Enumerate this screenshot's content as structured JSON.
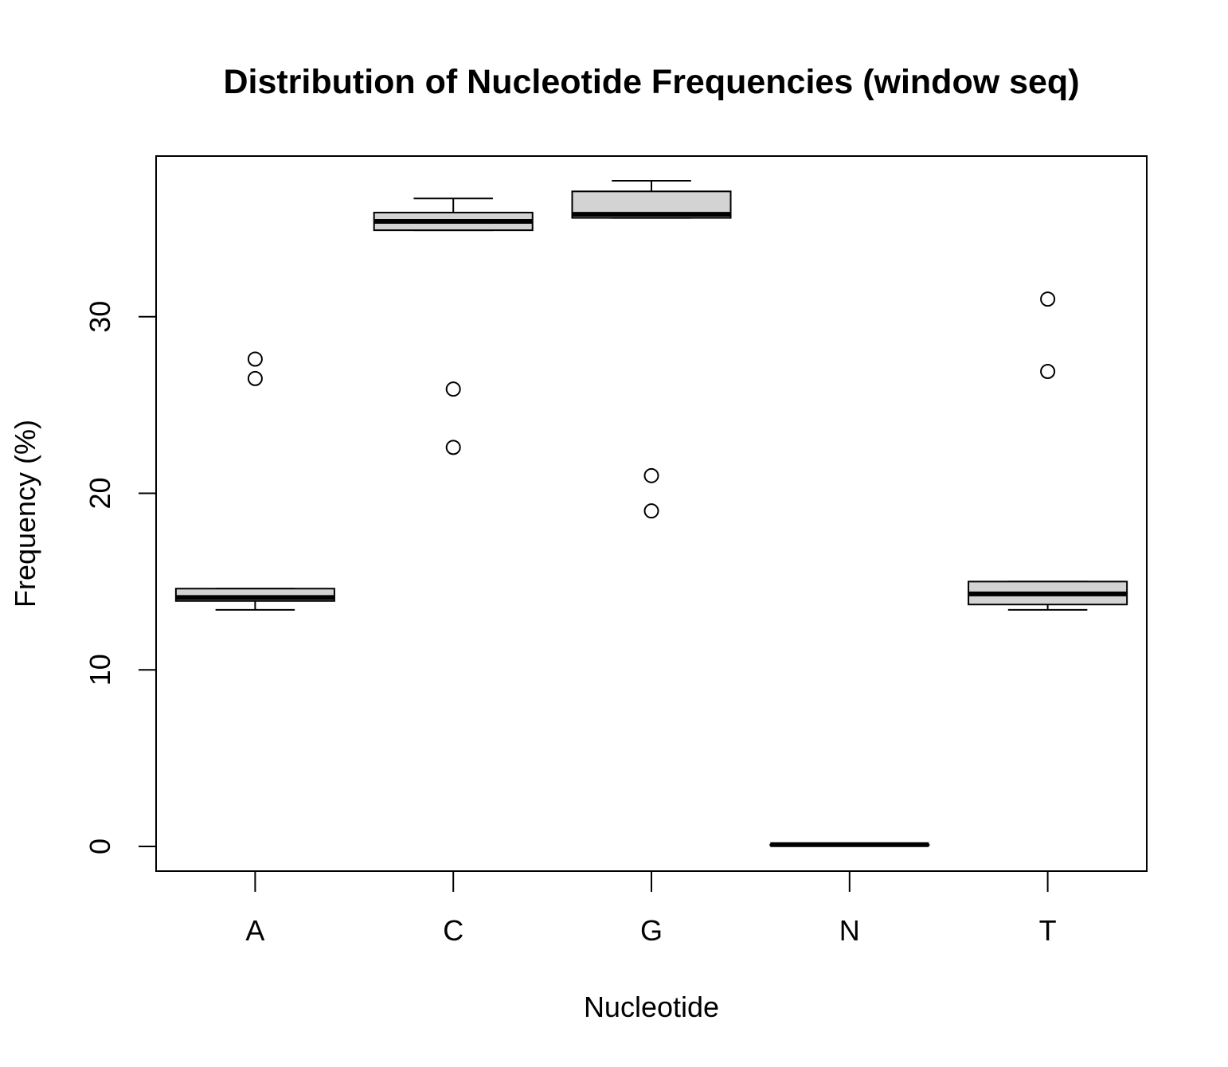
{
  "chart_data": {
    "type": "boxplot",
    "title": "Distribution of Nucleotide Frequencies (window seq)",
    "xlabel": "Nucleotide",
    "ylabel": "Frequency (%)",
    "ylim": [
      -1.4,
      39.1
    ],
    "yticks": [
      "0",
      "10",
      "20",
      "30"
    ],
    "grid": false,
    "legend": "none",
    "colors": {
      "box_fill": "#d3d3d3",
      "stroke": "#000000"
    },
    "categories": [
      "A",
      "C",
      "G",
      "N",
      "T"
    ],
    "boxes": [
      {
        "category": "A",
        "whisker_low": 13.4,
        "q1": 13.9,
        "median": 14.1,
        "q3": 14.6,
        "whisker_high": 14.6,
        "outliers": [
          26.5,
          27.6
        ]
      },
      {
        "category": "C",
        "whisker_low": 34.9,
        "q1": 34.9,
        "median": 35.4,
        "q3": 35.9,
        "whisker_high": 36.7,
        "outliers": [
          22.6,
          25.9
        ]
      },
      {
        "category": "G",
        "whisker_low": 35.6,
        "q1": 35.6,
        "median": 35.8,
        "q3": 37.1,
        "whisker_high": 37.7,
        "outliers": [
          19.0,
          21.0
        ]
      },
      {
        "category": "N",
        "whisker_low": 0.1,
        "q1": 0.1,
        "median": 0.1,
        "q3": 0.1,
        "whisker_high": 0.1,
        "outliers": []
      },
      {
        "category": "T",
        "whisker_low": 13.4,
        "q1": 13.7,
        "median": 14.3,
        "q3": 15.0,
        "whisker_high": 15.0,
        "outliers": [
          26.9,
          31.0
        ]
      }
    ]
  }
}
